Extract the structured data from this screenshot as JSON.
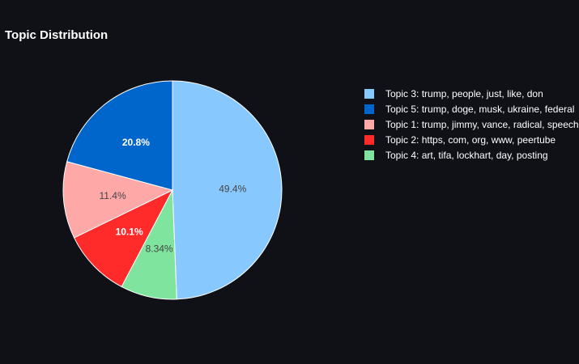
{
  "chart_data": {
    "type": "pie",
    "title": "Topic Distribution",
    "legend_position": "right",
    "slices": [
      {
        "label": "Topic 3: trump, people, just, like, don",
        "value": 49.4,
        "text": "49.4%",
        "color": "#87c8ff",
        "text_color": "#444444"
      },
      {
        "label": "Topic 4: art, tifa, lockhart, day, posting",
        "value": 8.34,
        "text": "8.34%",
        "color": "#7fe59e",
        "text_color": "#444444"
      },
      {
        "label": "Topic 2: https, com, org, www, peertube",
        "value": 10.1,
        "text": "10.1%",
        "color": "#ff2a2a",
        "text_color": "#ffffff"
      },
      {
        "label": "Topic 1: trump, jimmy, vance, radical, speech",
        "value": 11.4,
        "text": "11.4%",
        "color": "#ffa8a8",
        "text_color": "#444444"
      },
      {
        "label": "Topic 5: trump, doge, musk, ukraine, federal",
        "value": 20.8,
        "text": "20.8%",
        "color": "#0066cc",
        "text_color": "#ffffff"
      }
    ],
    "legend_order": [
      "Topic 3: trump, people, just, like, don",
      "Topic 5: trump, doge, musk, ukraine, federal",
      "Topic 1: trump, jimmy, vance, radical, speech",
      "Topic 2: https, com, org, www, peertube",
      "Topic 4: art, tifa, lockhart, day, posting"
    ]
  }
}
